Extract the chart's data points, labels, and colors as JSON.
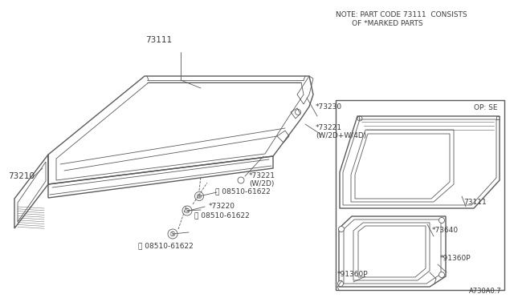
{
  "bg_color": "#ffffff",
  "line_color": "#5a5a5a",
  "text_color": "#3a3a3a",
  "title_note_line1": "NOTE: PART CODE 73111  CONSISTS",
  "title_note_line2": "       OF *MARKED PARTS",
  "diagram_code": "A730A0.7",
  "op_label": "OP: SE",
  "fig_w": 6.4,
  "fig_h": 3.72,
  "dpi": 100
}
